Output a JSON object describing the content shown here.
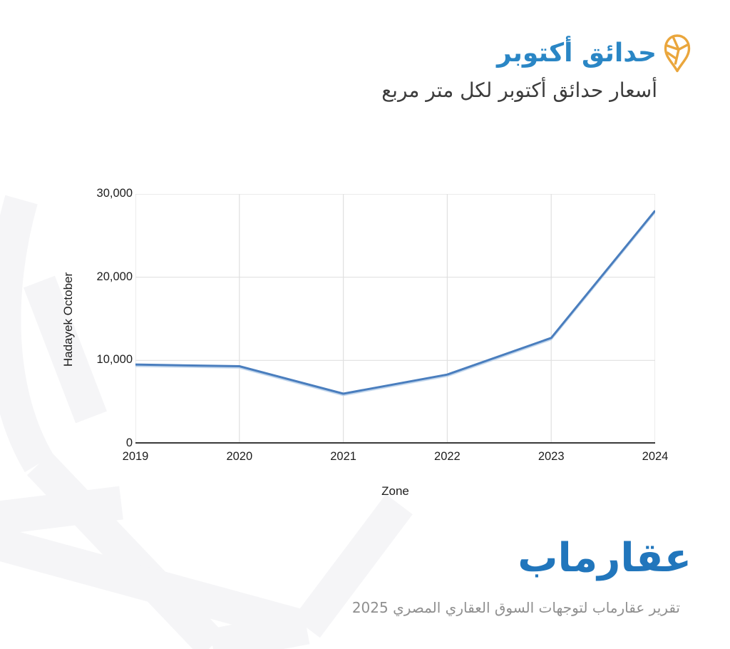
{
  "header": {
    "title": "حدائق أكتوبر",
    "subtitle": "أسعار حدائق أكتوبر لكل متر مربع",
    "title_color": "#2A86C5",
    "subtitle_color": "#3C3C3C",
    "pin_icon_color": "#EAA63C"
  },
  "chart_data": {
    "type": "line",
    "x": [
      "2019",
      "2020",
      "2021",
      "2022",
      "2023",
      "2024"
    ],
    "series": [
      {
        "name": "Hadayek October",
        "values": [
          9500,
          9300,
          6000,
          8300,
          12700,
          28000
        ]
      }
    ],
    "title": "",
    "xlabel": "Zone",
    "ylabel": "Hadayek October",
    "ylim": [
      0,
      30000
    ],
    "yticks": [
      0,
      10000,
      20000,
      30000
    ],
    "ytick_labels": [
      "0",
      "10,000",
      "20,000",
      "30,000"
    ],
    "grid": true,
    "legend_position": "none",
    "line_color": "#4A7EBE",
    "line_halo_color": "#B9D0EA",
    "gridline_color": "#E0E0E0",
    "axis_line_color": "#3A3A3A",
    "tick_text_color": "#1D1D1D"
  },
  "footer": {
    "logo_text": "عقارماب",
    "report_line": "تقرير عقارماب لتوجهات السوق العقاري المصري 2025",
    "logo_color": "#2176BC",
    "report_color": "#8F8F8F"
  },
  "watermark": {
    "color": "#F5F5F7"
  }
}
